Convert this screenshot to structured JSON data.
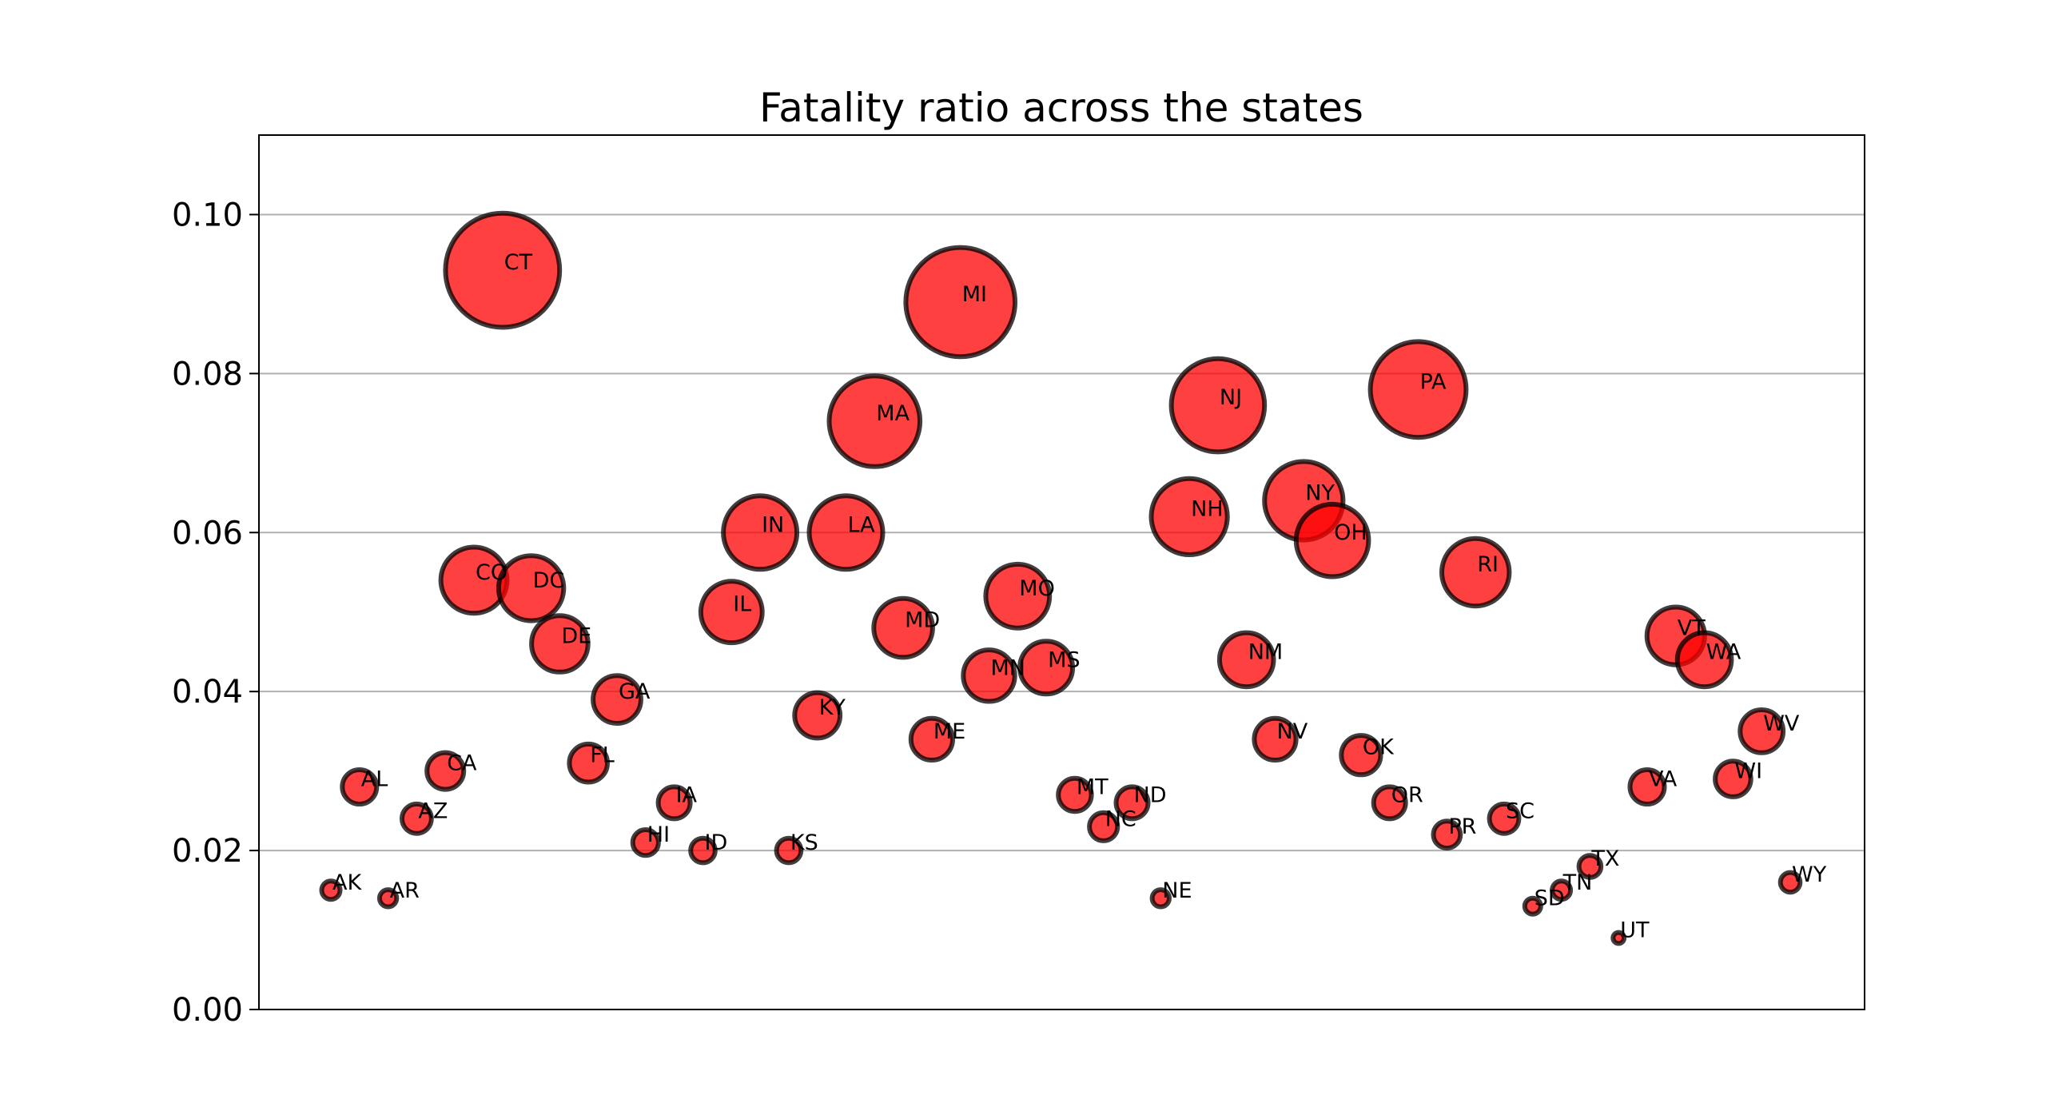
{
  "chart_data": {
    "type": "scatter",
    "title": "Fatality ratio across the states",
    "xlabel": "",
    "ylabel": "",
    "ylim": [
      0,
      0.11
    ],
    "yticks": [
      0.0,
      0.02,
      0.04,
      0.06,
      0.08,
      0.1
    ],
    "ytick_labels": [
      "0.00",
      "0.02",
      "0.04",
      "0.06",
      "0.08",
      "0.10"
    ],
    "grid": "horizontal",
    "marker_color": "#ff0000",
    "marker_edge_color": "#000000",
    "marker_opacity": 0.75,
    "bubble_size_encodes": "fatality ratio",
    "points": [
      {
        "label": "AK",
        "y": 0.015
      },
      {
        "label": "AL",
        "y": 0.028
      },
      {
        "label": "AR",
        "y": 0.014
      },
      {
        "label": "AZ",
        "y": 0.024
      },
      {
        "label": "CA",
        "y": 0.03
      },
      {
        "label": "CO",
        "y": 0.054
      },
      {
        "label": "CT",
        "y": 0.093
      },
      {
        "label": "DC",
        "y": 0.053
      },
      {
        "label": "DE",
        "y": 0.046
      },
      {
        "label": "FL",
        "y": 0.031
      },
      {
        "label": "GA",
        "y": 0.039
      },
      {
        "label": "HI",
        "y": 0.021
      },
      {
        "label": "IA",
        "y": 0.026
      },
      {
        "label": "ID",
        "y": 0.02
      },
      {
        "label": "IL",
        "y": 0.05
      },
      {
        "label": "IN",
        "y": 0.06
      },
      {
        "label": "KS",
        "y": 0.02
      },
      {
        "label": "KY",
        "y": 0.037
      },
      {
        "label": "LA",
        "y": 0.06
      },
      {
        "label": "MA",
        "y": 0.074
      },
      {
        "label": "MD",
        "y": 0.048
      },
      {
        "label": "ME",
        "y": 0.034
      },
      {
        "label": "MI",
        "y": 0.089
      },
      {
        "label": "MN",
        "y": 0.042
      },
      {
        "label": "MO",
        "y": 0.052
      },
      {
        "label": "MS",
        "y": 0.043
      },
      {
        "label": "MT",
        "y": 0.027
      },
      {
        "label": "NC",
        "y": 0.023
      },
      {
        "label": "ND",
        "y": 0.026
      },
      {
        "label": "NE",
        "y": 0.014
      },
      {
        "label": "NH",
        "y": 0.062
      },
      {
        "label": "NJ",
        "y": 0.076
      },
      {
        "label": "NM",
        "y": 0.044
      },
      {
        "label": "NV",
        "y": 0.034
      },
      {
        "label": "NY",
        "y": 0.064
      },
      {
        "label": "OH",
        "y": 0.059
      },
      {
        "label": "OK",
        "y": 0.032
      },
      {
        "label": "OR",
        "y": 0.026
      },
      {
        "label": "PA",
        "y": 0.078
      },
      {
        "label": "PR",
        "y": 0.022
      },
      {
        "label": "RI",
        "y": 0.055
      },
      {
        "label": "SC",
        "y": 0.024
      },
      {
        "label": "SD",
        "y": 0.013
      },
      {
        "label": "TN",
        "y": 0.015
      },
      {
        "label": "TX",
        "y": 0.018
      },
      {
        "label": "UT",
        "y": 0.009
      },
      {
        "label": "VA",
        "y": 0.028
      },
      {
        "label": "VT",
        "y": 0.047
      },
      {
        "label": "WA",
        "y": 0.044
      },
      {
        "label": "WI",
        "y": 0.029
      },
      {
        "label": "WV",
        "y": 0.035
      },
      {
        "label": "WY",
        "y": 0.016
      }
    ]
  }
}
